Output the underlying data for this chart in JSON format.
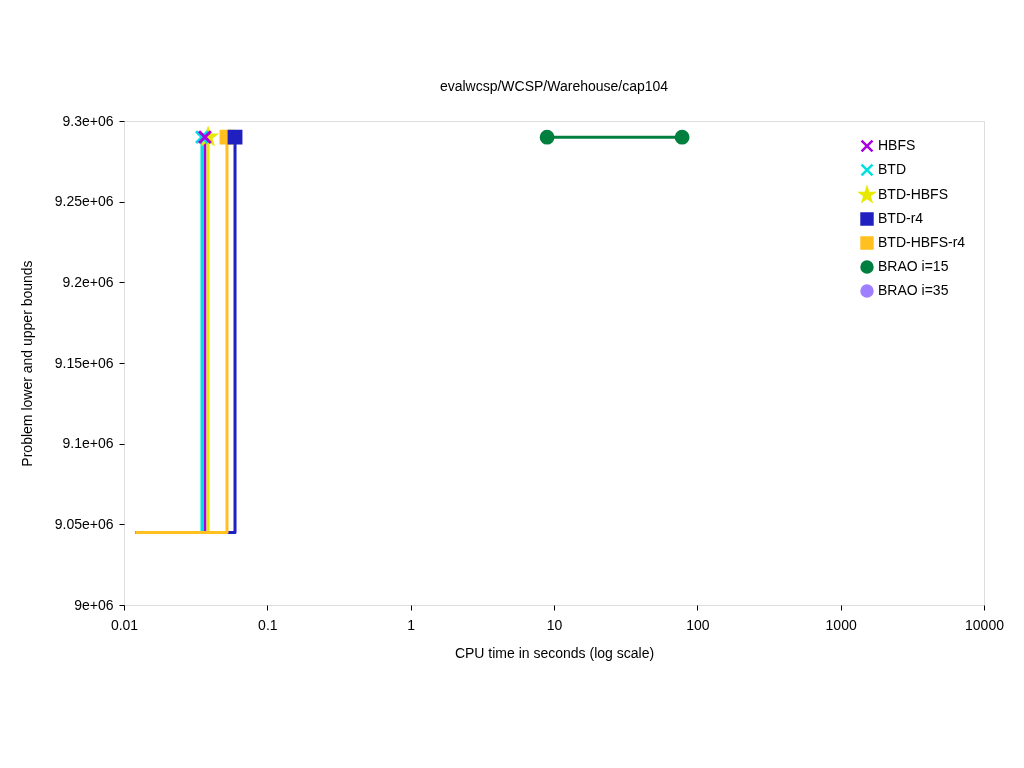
{
  "chart_data": {
    "type": "step",
    "title": "evalwcsp/WCSP/Warehouse/cap104",
    "xlabel": "CPU time in seconds (log scale)",
    "ylabel": "Problem lower and upper bounds",
    "log": "x",
    "grid": false,
    "legend": "top right",
    "xlim": [
      0.01,
      10000
    ],
    "xticks": [
      0.01,
      0.1,
      1,
      10,
      100,
      1000,
      10000
    ],
    "ylim": [
      9000000,
      9300000
    ],
    "yticks": [
      {
        "value": 9000000,
        "label": "9e+06"
      },
      {
        "value": 9050000,
        "label": "9.05e+06"
      },
      {
        "value": 9100000,
        "label": "9.1e+06"
      },
      {
        "value": 9150000,
        "label": "9.15e+06"
      },
      {
        "value": 9200000,
        "label": "9.2e+06"
      },
      {
        "value": 9250000,
        "label": "9.25e+06"
      },
      {
        "value": 9300000,
        "label": "9.3e+06"
      }
    ],
    "series": [
      {
        "name": "HBFS",
        "color": "#a800e0",
        "marker": "cross",
        "x": [
          0.0367,
          0.0367
        ],
        "values": [
          9045000,
          9290000
        ]
      },
      {
        "name": "BTD",
        "color": "#00e0e0",
        "marker": "cross",
        "x": [
          0.012,
          0.035
        ],
        "values": [
          9045000,
          9290000
        ]
      },
      {
        "name": "BTD-HBFS",
        "color": "#e8e800",
        "marker": "star",
        "x": [
          0.012,
          0.0386
        ],
        "values": [
          9045000,
          9290000
        ]
      },
      {
        "name": "BTD-r4",
        "color": "#2020c0",
        "marker": "square",
        "x": [
          0.012,
          0.0595
        ],
        "values": [
          9045000,
          9290000
        ]
      },
      {
        "name": "BTD-HBFS-r4",
        "color": "#ffc020",
        "marker": "square",
        "x": [
          0.012,
          0.0523
        ],
        "values": [
          9045000,
          9290000
        ]
      },
      {
        "name": "BRAO i=15",
        "type": "line",
        "color": "#007f3f",
        "marker": "circle",
        "x": [
          8.95,
          78.3
        ],
        "values": [
          9290000,
          9290000
        ]
      },
      {
        "name": "BRAO i=35",
        "type": "line",
        "color": "#9f7fff",
        "marker": "circle"
      }
    ]
  }
}
